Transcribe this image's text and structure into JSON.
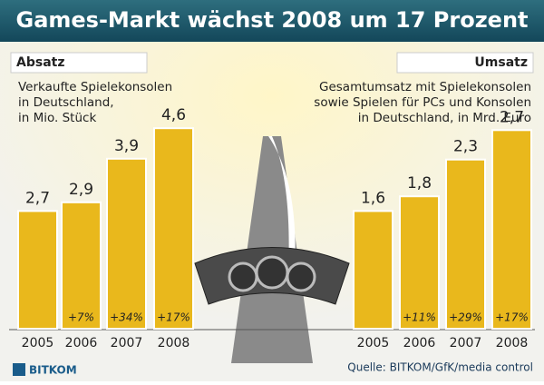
{
  "title": "Games-Markt wächst 2008 um 17 Prozent",
  "chart_data": [
    {
      "type": "bar",
      "label": "Absatz",
      "subtitle": [
        "Verkaufte Spielekonsolen",
        "in Deutschland,",
        "in Mio. Stück"
      ],
      "categories": [
        "2005",
        "2006",
        "2007",
        "2008"
      ],
      "values": [
        2.7,
        2.9,
        3.9,
        4.6
      ],
      "value_labels": [
        "2,7",
        "2,9",
        "3,9",
        "4,6"
      ],
      "annotations": [
        "+7%",
        "+34%",
        "+17%"
      ],
      "color": "#e9b81c"
    },
    {
      "type": "bar",
      "label": "Umsatz",
      "subtitle": [
        "Gesamtumsatz mit Spielekonsolen",
        "sowie Spielen für PCs und Konsolen",
        "in Deutschland, in Mrd. Euro"
      ],
      "categories": [
        "2005",
        "2006",
        "2007",
        "2008"
      ],
      "values": [
        1.6,
        1.8,
        2.3,
        2.7
      ],
      "value_labels": [
        "1,6",
        "1,8",
        "2,3",
        "2,7"
      ],
      "annotations": [
        "+11%",
        "+29%",
        "+17%"
      ],
      "color": "#e9b81c"
    }
  ],
  "source": "Quelle: BITKOM/GfK/media control",
  "logo": "BITKOM"
}
